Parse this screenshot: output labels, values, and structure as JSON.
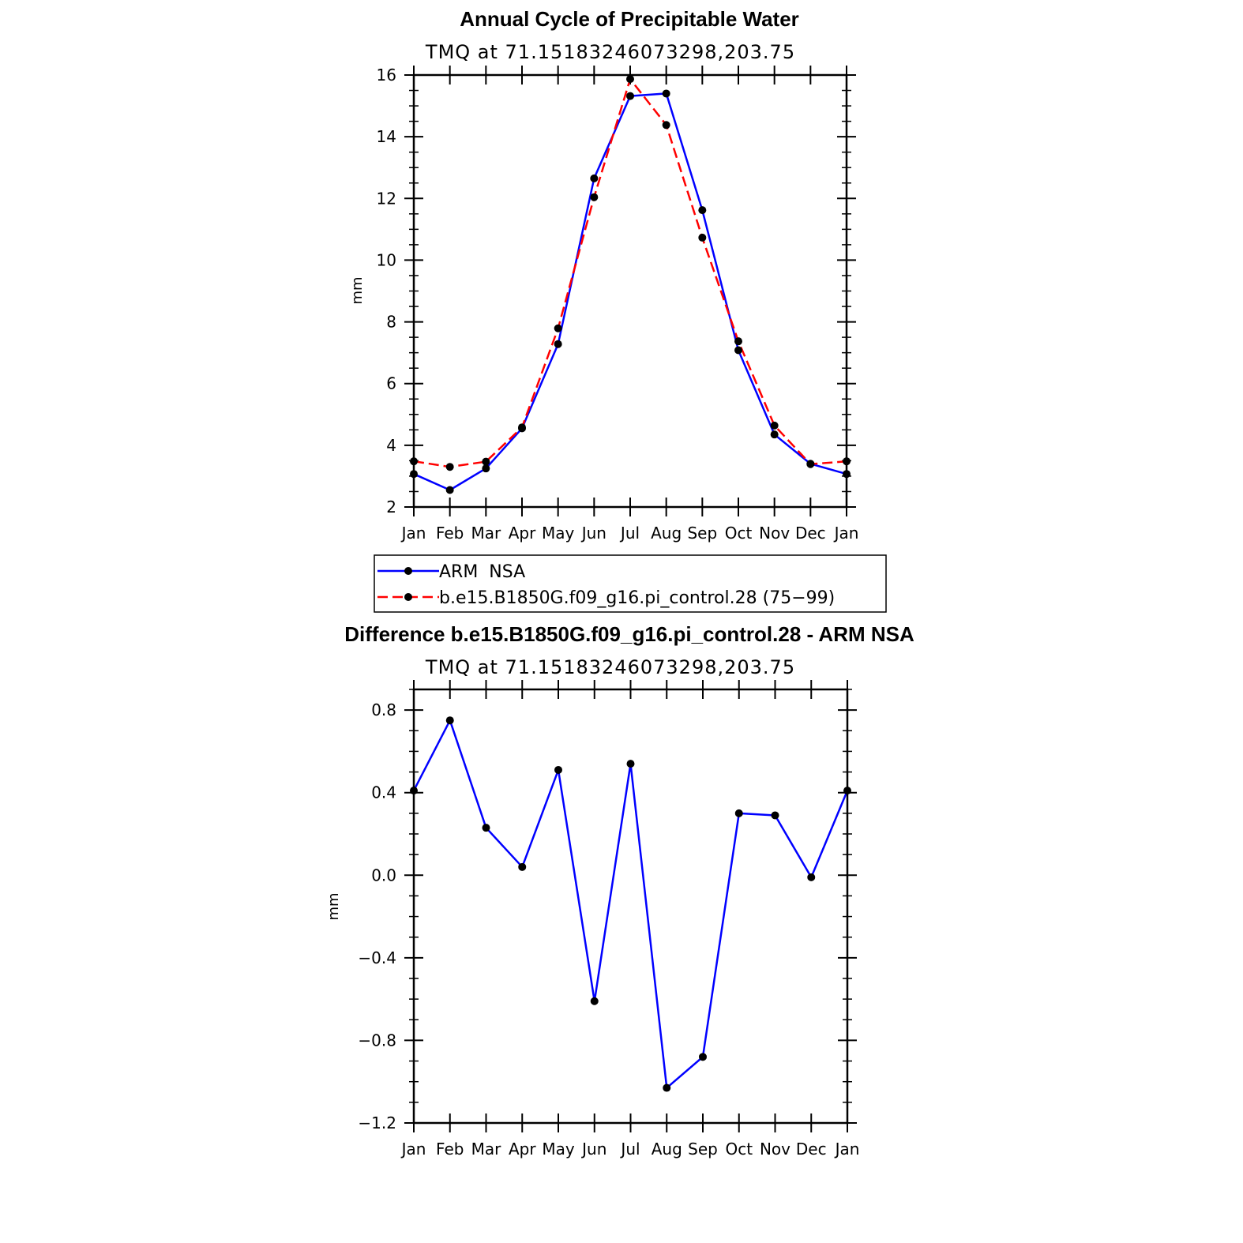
{
  "chart_data": [
    {
      "type": "line",
      "title": "Annual Cycle of Precipitable Water",
      "subtitle": "TMQ  at  71.15183246073298,203.75",
      "xlabel": "",
      "ylabel": "mm",
      "categories": [
        "Jan",
        "Feb",
        "Mar",
        "Apr",
        "May",
        "Jun",
        "Jul",
        "Aug",
        "Sep",
        "Oct",
        "Nov",
        "Dec",
        "Jan"
      ],
      "ylim": [
        2,
        16
      ],
      "yticks": [
        "16",
        "14",
        "12",
        "10",
        "8",
        "6",
        "4",
        "2"
      ],
      "ytick_values": [
        16,
        14,
        12,
        10,
        8,
        6,
        4,
        2
      ],
      "grid": false,
      "legend_position": "bottom",
      "series": [
        {
          "name": "ARM  NSA",
          "color": "#0000ff",
          "dash": "solid",
          "values": [
            3.07,
            2.55,
            3.25,
            4.55,
            7.28,
            12.65,
            15.32,
            15.4,
            11.62,
            7.08,
            4.35,
            3.4,
            3.07
          ]
        },
        {
          "name": "b.e15.B1850G.f09_g16.pi_control.28 (75−99)",
          "color": "#ff0000",
          "dash": "dashed",
          "values": [
            3.48,
            3.3,
            3.47,
            4.58,
            7.79,
            12.04,
            15.87,
            14.38,
            10.73,
            7.37,
            4.64,
            3.39,
            3.48
          ]
        }
      ]
    },
    {
      "type": "line",
      "title": "Difference b.e15.B1850G.f09_g16.pi_control.28 - ARM NSA",
      "subtitle": "TMQ  at  71.15183246073298,203.75",
      "xlabel": "",
      "ylabel": "mm",
      "categories": [
        "Jan",
        "Feb",
        "Mar",
        "Apr",
        "May",
        "Jun",
        "Jul",
        "Aug",
        "Sep",
        "Oct",
        "Nov",
        "Dec",
        "Jan"
      ],
      "ylim": [
        -1.2,
        0.9
      ],
      "yticks": [
        "0.8",
        "0.4",
        "0.0",
        "−0.4",
        "−0.8",
        "−1.2"
      ],
      "ytick_values": [
        0.8,
        0.4,
        0.0,
        -0.4,
        -0.8,
        -1.2
      ],
      "grid": false,
      "series": [
        {
          "color": "#0000ff",
          "dash": "solid",
          "values": [
            0.41,
            0.75,
            0.23,
            0.04,
            0.51,
            -0.61,
            0.54,
            -1.03,
            -0.88,
            0.3,
            0.29,
            -0.01,
            0.41
          ]
        }
      ]
    }
  ]
}
